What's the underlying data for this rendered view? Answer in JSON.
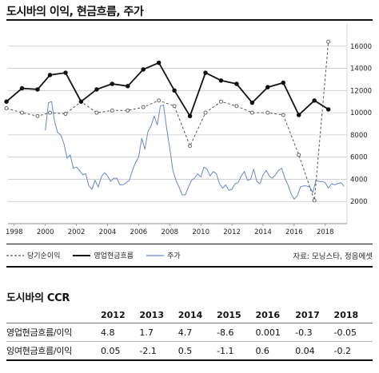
{
  "header": {
    "title": "도시바의 이익, 현금흐름, 주가"
  },
  "legend": {
    "items": [
      {
        "label": "당기순이익",
        "style": "dashed",
        "color": "#555555"
      },
      {
        "label": "영업현금흐름",
        "style": "solid-bold",
        "color": "#111111"
      },
      {
        "label": "주가",
        "style": "thin",
        "color": "#6a86c8"
      }
    ]
  },
  "source": "자료: 모닝스타, 정음에셋",
  "chart_data": {
    "type": "line",
    "title": "도시바의 이익, 현금흐름, 주가",
    "x_ticks": [
      "1998",
      "2000",
      "2002",
      "2004",
      "2006",
      "2008",
      "2010",
      "2012",
      "2014",
      "2016",
      "2018"
    ],
    "y_ticks": [
      "2000",
      "4000",
      "6000",
      "8000",
      "10000",
      "12000",
      "14000",
      "16000"
    ],
    "xlim": [
      1997.6,
      2019.4
    ],
    "ylim": [
      0,
      18000
    ],
    "grid": true,
    "grid_axis": "y",
    "y_axis_position": "right",
    "series": [
      {
        "name": "영업현금흐름",
        "style": "solid-bold",
        "color": "#111111",
        "x": [
          1997.5,
          1998.5,
          1999.5,
          2000.3,
          2001.3,
          2002.3,
          2003.3,
          2004.3,
          2005.3,
          2006.3,
          2007.3,
          2008.3,
          2009.3,
          2010.3,
          2011.3,
          2012.3,
          2013.3,
          2014.3,
          2015.3,
          2016.3,
          2017.3,
          2018.2
        ],
        "y": [
          11000,
          12200,
          12100,
          13400,
          13600,
          11000,
          12100,
          12600,
          12400,
          13900,
          14500,
          12000,
          9700,
          13600,
          12900,
          12600,
          10900,
          12300,
          12700,
          9800,
          11100,
          10300
        ]
      },
      {
        "name": "당기순이익",
        "style": "dashed",
        "color": "#555555",
        "x": [
          1997.5,
          1998.5,
          1999.5,
          2000.3,
          2001.3,
          2002.3,
          2003.3,
          2004.3,
          2005.3,
          2006.3,
          2007.3,
          2008.3,
          2009.3,
          2010.3,
          2011.3,
          2012.3,
          2013.3,
          2014.3,
          2015.3,
          2016.3,
          2017.3,
          2018.2
        ],
        "y": [
          10400,
          10000,
          9700,
          10000,
          9900,
          11000,
          10000,
          10200,
          10200,
          10500,
          11100,
          10600,
          7000,
          10000,
          11000,
          10600,
          10000,
          10000,
          9800,
          6200,
          2100,
          16400
        ]
      },
      {
        "name": "주가",
        "style": "thin",
        "color": "#6a86c8",
        "x": [
          2000.0,
          2000.2,
          2000.4,
          2000.6,
          2000.8,
          2001.0,
          2001.2,
          2001.4,
          2001.6,
          2001.8,
          2002.0,
          2002.2,
          2002.4,
          2002.6,
          2002.8,
          2003.0,
          2003.2,
          2003.4,
          2003.6,
          2003.8,
          2004.0,
          2004.2,
          2004.4,
          2004.6,
          2004.8,
          2005.0,
          2005.2,
          2005.4,
          2005.6,
          2005.8,
          2006.0,
          2006.2,
          2006.4,
          2006.6,
          2006.8,
          2007.0,
          2007.2,
          2007.4,
          2007.6,
          2007.8,
          2008.0,
          2008.2,
          2008.4,
          2008.6,
          2008.8,
          2009.0,
          2009.2,
          2009.4,
          2009.6,
          2009.8,
          2010.0,
          2010.2,
          2010.4,
          2010.6,
          2010.8,
          2011.0,
          2011.2,
          2011.4,
          2011.6,
          2011.8,
          2012.0,
          2012.2,
          2012.4,
          2012.6,
          2012.8,
          2013.0,
          2013.2,
          2013.4,
          2013.6,
          2013.8,
          2014.0,
          2014.2,
          2014.4,
          2014.6,
          2014.8,
          2015.0,
          2015.2,
          2015.4,
          2015.6,
          2015.8,
          2016.0,
          2016.2,
          2016.4,
          2016.6,
          2016.8,
          2017.0,
          2017.2,
          2017.4,
          2017.6,
          2017.8,
          2018.0,
          2018.2,
          2018.4,
          2018.6,
          2018.8,
          2019.0,
          2019.2
        ],
        "y": [
          8400,
          10900,
          11000,
          9200,
          8200,
          8000,
          7200,
          5900,
          6200,
          5000,
          5100,
          4800,
          4400,
          4500,
          3400,
          3100,
          3900,
          3300,
          4200,
          4600,
          4300,
          3800,
          4100,
          4100,
          3500,
          3500,
          3700,
          3900,
          4800,
          5500,
          6000,
          7700,
          6700,
          8300,
          8800,
          9700,
          8900,
          10600,
          10700,
          8600,
          6800,
          4800,
          3900,
          3300,
          2600,
          2600,
          3300,
          3900,
          4100,
          4500,
          4200,
          5100,
          4900,
          4300,
          4700,
          4500,
          3600,
          3200,
          3500,
          3000,
          3100,
          3600,
          3700,
          4300,
          4700,
          3900,
          4000,
          4900,
          3800,
          3600,
          4400,
          4800,
          4300,
          4100,
          4400,
          4800,
          5000,
          4100,
          3500,
          2700,
          2200,
          2500,
          3300,
          3400,
          3400,
          3300,
          2800,
          3900,
          3800,
          3800,
          3700,
          3200,
          3600,
          3500,
          3600,
          3700,
          3400
        ]
      }
    ]
  },
  "ccr": {
    "title": "도시바의 CCR",
    "header": [
      "",
      "2012",
      "2013",
      "2014",
      "2015",
      "2016",
      "2017",
      "2018"
    ],
    "rows": [
      {
        "label": "영업현금흐름/이익",
        "values": [
          "4.8",
          "1.7",
          "4.7",
          "-8.6",
          "0.001",
          "-0.3",
          "-0.05"
        ]
      },
      {
        "label": "잉여현금흐름/이익",
        "values": [
          "0.05",
          "-2.1",
          "0.5",
          "-1.1",
          "0.6",
          "0.04",
          "-0.2"
        ]
      }
    ]
  }
}
